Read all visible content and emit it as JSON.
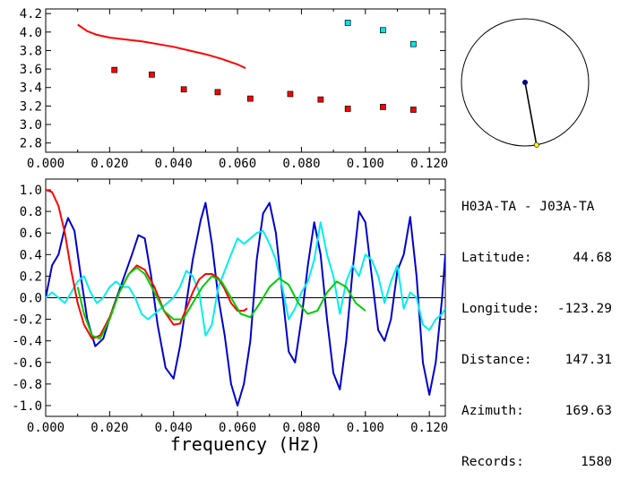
{
  "chart_data": [
    {
      "type": "scatter",
      "xlim": [
        0,
        0.125
      ],
      "ylim": [
        2.7,
        4.25
      ],
      "x_ticks": [
        "0.000",
        "0.020",
        "0.040",
        "0.060",
        "0.080",
        "0.100",
        "0.120"
      ],
      "x_tick_values": [
        0,
        0.02,
        0.04,
        0.06,
        0.08,
        0.1,
        0.12
      ],
      "y_ticks": [
        "4.2",
        "4.0",
        "3.8",
        "3.6",
        "3.4",
        "3.2",
        "3.0",
        "2.8"
      ],
      "y_tick_values": [
        4.2,
        4.0,
        3.8,
        3.6,
        3.4,
        3.2,
        3.0,
        2.8
      ],
      "grid": false,
      "series": [
        {
          "kind": "line",
          "color": "#ff0000",
          "x": [
            0.01,
            0.013,
            0.016,
            0.02,
            0.025,
            0.03,
            0.035,
            0.04,
            0.045,
            0.05,
            0.055,
            0.06,
            0.0625
          ],
          "y": [
            4.08,
            4.01,
            3.97,
            3.94,
            3.92,
            3.9,
            3.87,
            3.84,
            3.8,
            3.76,
            3.71,
            3.65,
            3.61
          ]
        },
        {
          "kind": "points",
          "color": "#ff0000",
          "x": [
            0.0215,
            0.0332,
            0.0432,
            0.0538,
            0.064,
            0.0765,
            0.086,
            0.0945,
            0.1055,
            0.115
          ],
          "y": [
            3.59,
            3.54,
            3.38,
            3.35,
            3.28,
            3.33,
            3.27,
            3.17,
            3.19,
            3.16
          ]
        },
        {
          "kind": "points",
          "color": "#00e5ee",
          "x": [
            0.0945,
            0.1055,
            0.115
          ],
          "y": [
            4.1,
            4.02,
            3.87
          ]
        }
      ]
    },
    {
      "type": "line",
      "xlim": [
        0,
        0.125
      ],
      "ylim": [
        -1.1,
        1.1
      ],
      "x_ticks": [
        "0.000",
        "0.020",
        "0.040",
        "0.060",
        "0.080",
        "0.100",
        "0.120"
      ],
      "x_tick_values": [
        0,
        0.02,
        0.04,
        0.06,
        0.08,
        0.1,
        0.12
      ],
      "y_ticks": [
        "1.0",
        "0.8",
        "0.6",
        "0.4",
        "0.2",
        "0.0",
        "-0.2",
        "-0.4",
        "-0.6",
        "-0.8",
        "-1.0"
      ],
      "y_tick_values": [
        1.0,
        0.8,
        0.6,
        0.4,
        0.2,
        0.0,
        -0.2,
        -0.4,
        -0.6,
        -0.8,
        -1.0
      ],
      "xlabel": "frequency (Hz)",
      "zero_line": true,
      "series": [
        {
          "color": "#0000cc",
          "x": [
            0.0,
            0.002,
            0.004,
            0.006,
            0.007,
            0.009,
            0.011,
            0.013,
            0.0155,
            0.018,
            0.021,
            0.024,
            0.027,
            0.029,
            0.031,
            0.033,
            0.035,
            0.0375,
            0.04,
            0.042,
            0.044,
            0.046,
            0.0485,
            0.05,
            0.052,
            0.054,
            0.056,
            0.058,
            0.06,
            0.062,
            0.064,
            0.066,
            0.068,
            0.07,
            0.072,
            0.074,
            0.076,
            0.078,
            0.08,
            0.082,
            0.084,
            0.086,
            0.088,
            0.09,
            0.092,
            0.094,
            0.096,
            0.098,
            0.1,
            0.102,
            0.104,
            0.106,
            0.108,
            0.11,
            0.112,
            0.114,
            0.116,
            0.118,
            0.12,
            0.122,
            0.124,
            0.125
          ],
          "y": [
            0.0,
            0.3,
            0.4,
            0.65,
            0.74,
            0.62,
            0.2,
            -0.2,
            -0.45,
            -0.38,
            -0.1,
            0.15,
            0.4,
            0.58,
            0.55,
            0.2,
            -0.25,
            -0.65,
            -0.75,
            -0.45,
            -0.05,
            0.35,
            0.72,
            0.88,
            0.5,
            0.0,
            -0.35,
            -0.8,
            -1.0,
            -0.8,
            -0.4,
            0.35,
            0.78,
            0.88,
            0.6,
            0.05,
            -0.5,
            -0.6,
            -0.2,
            0.3,
            0.7,
            0.4,
            -0.2,
            -0.7,
            -0.85,
            -0.4,
            0.25,
            0.8,
            0.7,
            0.2,
            -0.3,
            -0.4,
            -0.2,
            0.25,
            0.4,
            0.75,
            0.2,
            -0.6,
            -0.9,
            -0.6,
            0.0,
            0.4
          ]
        },
        {
          "color": "#00eeee",
          "x": [
            0.0,
            0.002,
            0.004,
            0.006,
            0.008,
            0.01,
            0.012,
            0.014,
            0.016,
            0.018,
            0.02,
            0.022,
            0.024,
            0.026,
            0.028,
            0.03,
            0.032,
            0.034,
            0.036,
            0.038,
            0.04,
            0.042,
            0.044,
            0.046,
            0.048,
            0.05,
            0.052,
            0.054,
            0.056,
            0.058,
            0.06,
            0.062,
            0.064,
            0.066,
            0.068,
            0.07,
            0.072,
            0.074,
            0.076,
            0.078,
            0.08,
            0.082,
            0.084,
            0.086,
            0.088,
            0.09,
            0.092,
            0.094,
            0.096,
            0.098,
            0.1,
            0.102,
            0.104,
            0.106,
            0.108,
            0.11,
            0.112,
            0.114,
            0.116,
            0.118,
            0.12,
            0.122,
            0.124,
            0.125
          ],
          "y": [
            0.0,
            0.05,
            0.0,
            -0.05,
            0.05,
            0.15,
            0.2,
            0.05,
            -0.05,
            0.0,
            0.1,
            0.15,
            0.1,
            0.1,
            0.0,
            -0.15,
            -0.2,
            -0.15,
            -0.1,
            -0.05,
            0.0,
            0.1,
            0.25,
            0.2,
            0.05,
            -0.35,
            -0.25,
            0.1,
            0.25,
            0.4,
            0.55,
            0.5,
            0.55,
            0.6,
            0.62,
            0.5,
            0.35,
            0.1,
            -0.2,
            -0.1,
            0.05,
            0.15,
            0.35,
            0.7,
            0.4,
            0.2,
            -0.15,
            0.15,
            0.3,
            0.2,
            0.4,
            0.35,
            0.2,
            -0.05,
            0.15,
            0.3,
            -0.1,
            0.05,
            0.0,
            -0.25,
            -0.3,
            -0.2,
            -0.15,
            -0.1
          ]
        },
        {
          "color": "#ff0000",
          "x": [
            0.0,
            0.002,
            0.004,
            0.006,
            0.008,
            0.01,
            0.012,
            0.0145,
            0.017,
            0.02,
            0.023,
            0.026,
            0.0285,
            0.031,
            0.034,
            0.037,
            0.04,
            0.042,
            0.044,
            0.046,
            0.048,
            0.05,
            0.052,
            0.054,
            0.056,
            0.058,
            0.06,
            0.062,
            0.063
          ],
          "y": [
            1.0,
            0.98,
            0.85,
            0.6,
            0.25,
            -0.05,
            -0.25,
            -0.38,
            -0.35,
            -0.18,
            0.05,
            0.22,
            0.3,
            0.26,
            0.1,
            -0.12,
            -0.25,
            -0.24,
            -0.1,
            0.05,
            0.17,
            0.22,
            0.22,
            0.18,
            0.08,
            -0.05,
            -0.12,
            -0.12,
            -0.1
          ]
        },
        {
          "color": "#00cc00",
          "x": [
            0.01,
            0.012,
            0.0145,
            0.017,
            0.02,
            0.023,
            0.026,
            0.0285,
            0.031,
            0.034,
            0.037,
            0.04,
            0.043,
            0.046,
            0.049,
            0.052,
            0.055,
            0.058,
            0.061,
            0.064,
            0.067,
            0.07,
            0.073,
            0.076,
            0.079,
            0.082,
            0.085,
            0.088,
            0.091,
            0.094,
            0.097,
            0.1
          ],
          "y": [
            0.1,
            -0.15,
            -0.35,
            -0.38,
            -0.2,
            0.05,
            0.22,
            0.28,
            0.22,
            0.05,
            -0.12,
            -0.2,
            -0.2,
            -0.05,
            0.1,
            0.2,
            0.15,
            0.0,
            -0.15,
            -0.18,
            -0.05,
            0.1,
            0.18,
            0.12,
            -0.05,
            -0.15,
            -0.12,
            0.05,
            0.15,
            0.1,
            -0.05,
            -0.12
          ]
        }
      ]
    }
  ],
  "globe": {
    "center_dot_color": "#000080",
    "edge_dot_color": "#ffff00",
    "azimuth_deg": 169.63
  },
  "info": {
    "title": "H03A-TA - J03A-TA",
    "rows": [
      {
        "label": "Latitude:",
        "value": "44.68"
      },
      {
        "label": "Longitude:",
        "value": "-123.29"
      },
      {
        "label": "Distance:",
        "value": "147.31"
      },
      {
        "label": "Azimuth:",
        "value": "169.63"
      },
      {
        "label": "Records:",
        "value": "1580"
      }
    ]
  }
}
